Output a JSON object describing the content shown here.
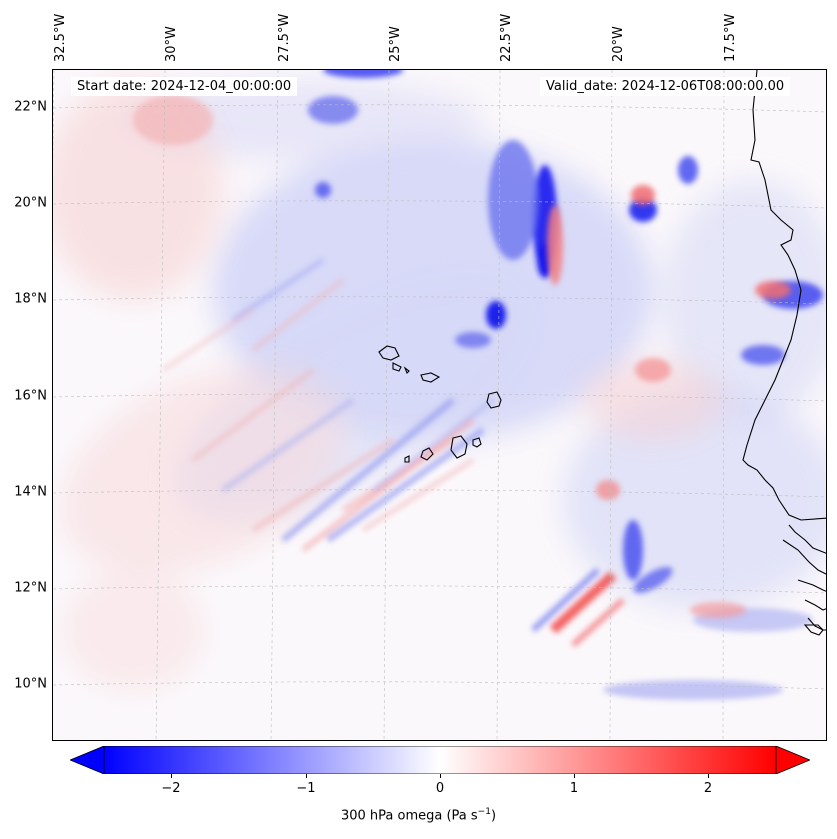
{
  "map": {
    "variable": "300 hPa omega",
    "colorbar_label_main": "300 hPa omega (Pa s",
    "colorbar_label_sup": "−1",
    "colorbar_label_close": ")",
    "start_label": "Start date: 2024-12-04_00:00:00",
    "valid_label": "Valid_date: 2024-12-06T08:00:00.00",
    "colormap": "bwr",
    "colors": {
      "negative": "#0000ff",
      "zero": "#ffffff",
      "positive": "#ff0000",
      "coastline": "#000000"
    },
    "lon_labels": [
      "32.5°W",
      "30°W",
      "27.5°W",
      "25°W",
      "22.5°W",
      "20°W",
      "17.5°W"
    ],
    "lat_labels": [
      "22°N",
      "20°N",
      "18°N",
      "16°N",
      "14°N",
      "12°N",
      "10°N"
    ],
    "colorbar": {
      "ticks": [
        "−2",
        "−1",
        "0",
        "1",
        "2"
      ],
      "range": [
        -2.5,
        2.5
      ],
      "extend": "both"
    },
    "gridlines": true
  }
}
